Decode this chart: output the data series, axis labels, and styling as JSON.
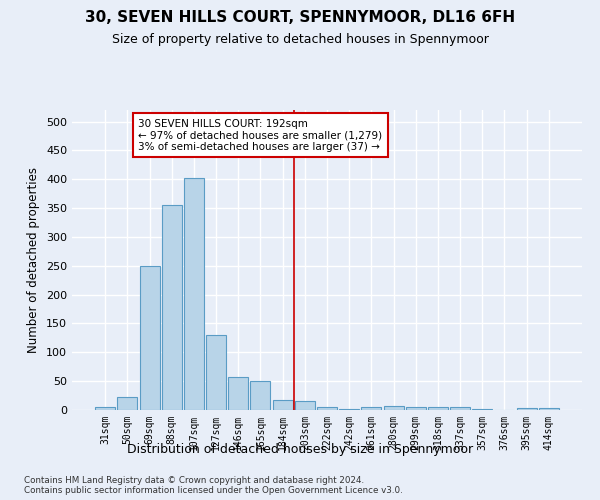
{
  "title": "30, SEVEN HILLS COURT, SPENNYMOOR, DL16 6FH",
  "subtitle": "Size of property relative to detached houses in Spennymoor",
  "xlabel": "Distribution of detached houses by size in Spennymoor",
  "ylabel": "Number of detached properties",
  "categories": [
    "31sqm",
    "50sqm",
    "69sqm",
    "88sqm",
    "107sqm",
    "127sqm",
    "146sqm",
    "165sqm",
    "184sqm",
    "203sqm",
    "222sqm",
    "242sqm",
    "261sqm",
    "280sqm",
    "299sqm",
    "318sqm",
    "337sqm",
    "357sqm",
    "376sqm",
    "395sqm",
    "414sqm"
  ],
  "values": [
    6,
    23,
    250,
    355,
    402,
    130,
    58,
    50,
    18,
    15,
    5,
    2,
    5,
    7,
    6,
    6,
    5,
    1,
    0,
    3,
    3
  ],
  "bar_color": "#b8d4e8",
  "bar_edgecolor": "#5a9cc5",
  "vline_x": 8.5,
  "vline_color": "#cc0000",
  "annotation_text": "30 SEVEN HILLS COURT: 192sqm\n← 97% of detached houses are smaller (1,279)\n3% of semi-detached houses are larger (37) →",
  "annotation_box_color": "#cc0000",
  "ylim": [
    0,
    520
  ],
  "yticks": [
    0,
    50,
    100,
    150,
    200,
    250,
    300,
    350,
    400,
    450,
    500
  ],
  "background_color": "#e8eef8",
  "grid_color": "#ffffff",
  "footer": "Contains HM Land Registry data © Crown copyright and database right 2024.\nContains public sector information licensed under the Open Government Licence v3.0.",
  "title_fontsize": 11,
  "subtitle_fontsize": 9,
  "xlabel_fontsize": 9,
  "ylabel_fontsize": 8.5
}
